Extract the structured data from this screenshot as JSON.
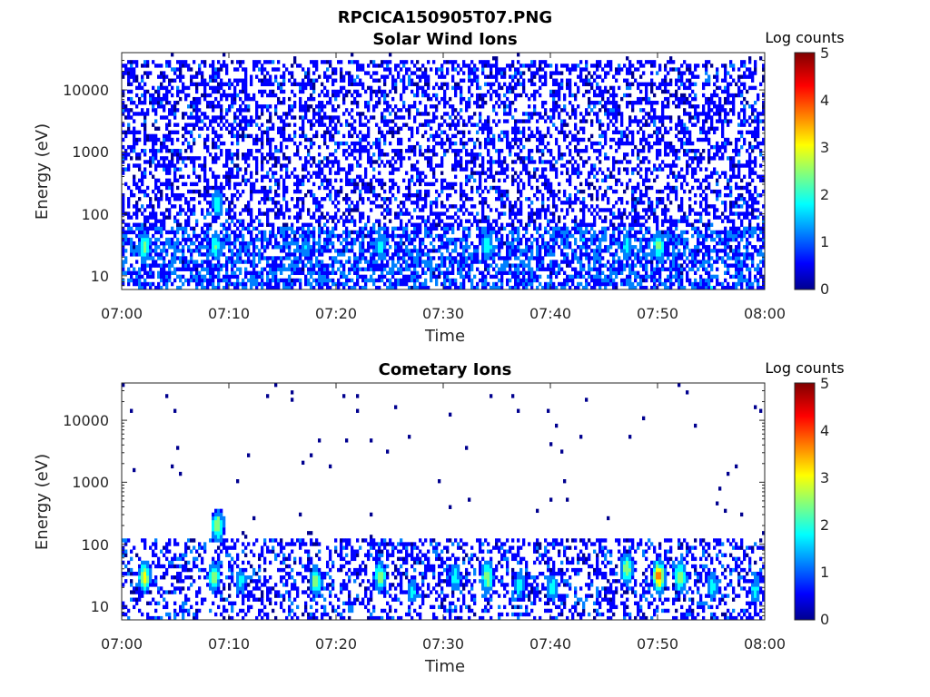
{
  "figure": {
    "title": "RPCICA150905T07.PNG"
  },
  "colorscale": [
    "#00008f",
    "#0000ff",
    "#0080ff",
    "#00ffff",
    "#80ff80",
    "#ffff00",
    "#ff8000",
    "#ff0000",
    "#800000"
  ],
  "chart_data": [
    {
      "type": "heatmap",
      "title": "Solar Wind Ions",
      "xlabel": "Time",
      "ylabel": "Energy (eV)",
      "x_ticks": [
        "07:00",
        "07:10",
        "07:20",
        "07:30",
        "07:40",
        "07:50",
        "08:00"
      ],
      "x_range": [
        "07:00",
        "08:00"
      ],
      "y_scale": "log",
      "y_ticks": [
        "10",
        "100",
        "1000",
        "10000"
      ],
      "y_tick_values": [
        10,
        100,
        1000,
        10000
      ],
      "y_range": [
        6,
        40000
      ],
      "colorbar": {
        "label": "Log counts",
        "ticks": [
          "0",
          "1",
          "2",
          "3",
          "4",
          "5"
        ],
        "range": [
          0,
          5
        ]
      },
      "background_fill": 0.45,
      "background_energy_range": [
        6,
        30000
      ],
      "low_energy_hotspots": [
        {
          "time": "07:02",
          "energy": 30,
          "value": 2.5
        },
        {
          "time": "07:08:40",
          "energy": 30,
          "value": 2.2
        },
        {
          "time": "07:08:50",
          "energy": 150,
          "value": 2.0
        },
        {
          "time": "07:17",
          "energy": 30,
          "value": 1.5
        },
        {
          "time": "07:24",
          "energy": 30,
          "value": 1.8
        },
        {
          "time": "07:34",
          "energy": 30,
          "value": 2.0
        },
        {
          "time": "07:47",
          "energy": 30,
          "value": 1.8
        },
        {
          "time": "07:50",
          "energy": 30,
          "value": 2.5
        }
      ]
    },
    {
      "type": "heatmap",
      "title": "Cometary Ions",
      "xlabel": "Time",
      "ylabel": "Energy (eV)",
      "x_ticks": [
        "07:00",
        "07:10",
        "07:20",
        "07:30",
        "07:40",
        "07:50",
        "08:00"
      ],
      "x_range": [
        "07:00",
        "08:00"
      ],
      "y_scale": "log",
      "y_ticks": [
        "10",
        "100",
        "1000",
        "10000"
      ],
      "y_tick_values": [
        10,
        100,
        1000,
        10000
      ],
      "y_range": [
        6,
        40000
      ],
      "colorbar": {
        "label": "Log counts",
        "ticks": [
          "0",
          "1",
          "2",
          "3",
          "4",
          "5"
        ],
        "range": [
          0,
          5
        ]
      },
      "band_energy_range": [
        6,
        120
      ],
      "bursts": [
        {
          "time": "07:02",
          "energy": 30,
          "value": 3.0
        },
        {
          "time": "07:08:30",
          "energy": 30,
          "value": 2.5
        },
        {
          "time": "07:08:50",
          "energy": 200,
          "value": 2.8
        },
        {
          "time": "07:11",
          "energy": 25,
          "value": 1.8
        },
        {
          "time": "07:18",
          "energy": 25,
          "value": 2.6
        },
        {
          "time": "07:24",
          "energy": 30,
          "value": 2.6
        },
        {
          "time": "07:27",
          "energy": 18,
          "value": 1.8
        },
        {
          "time": "07:31",
          "energy": 30,
          "value": 2.0
        },
        {
          "time": "07:34",
          "energy": 30,
          "value": 2.8
        },
        {
          "time": "07:37",
          "energy": 22,
          "value": 2.0
        },
        {
          "time": "07:40",
          "energy": 20,
          "value": 2.0
        },
        {
          "time": "07:47",
          "energy": 40,
          "value": 2.8
        },
        {
          "time": "07:50",
          "energy": 30,
          "value": 3.8
        },
        {
          "time": "07:52",
          "energy": 30,
          "value": 2.8
        },
        {
          "time": "07:55",
          "energy": 22,
          "value": 2.0
        },
        {
          "time": "07:59",
          "energy": 18,
          "value": 1.8
        }
      ]
    }
  ]
}
